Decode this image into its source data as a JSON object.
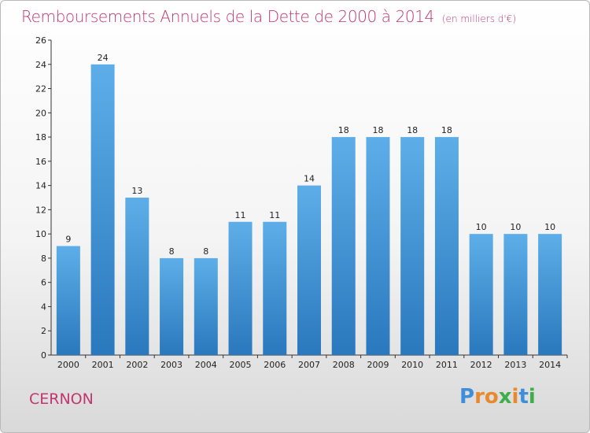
{
  "header": {
    "title": "Remboursements Annuels de la Dette de 2000 à 2014",
    "unit": "(en milliers d'€)"
  },
  "footer": {
    "city": "CERNON",
    "logo_text": "Proxiti"
  },
  "colors": {
    "title": "#c2366f",
    "bar_top": "#5daee8",
    "bar_bottom": "#2a78bd",
    "logo": [
      "#3f8fd8",
      "#e8892c",
      "#e8892c",
      "#3fae49",
      "#e8892c",
      "#3f8fd8",
      "#3fae49"
    ]
  },
  "chart_data": {
    "type": "bar",
    "title": "Remboursements Annuels de la Dette de 2000 à 2014",
    "categories": [
      "2000",
      "2001",
      "2002",
      "2003",
      "2004",
      "2005",
      "2006",
      "2007",
      "2008",
      "2009",
      "2010",
      "2011",
      "2012",
      "2013",
      "2014"
    ],
    "values": [
      9,
      24,
      13,
      8,
      8,
      11,
      11,
      14,
      18,
      18,
      18,
      18,
      10,
      10,
      10
    ],
    "ylim": [
      0,
      26
    ],
    "yticks": [
      0,
      2,
      4,
      6,
      8,
      10,
      12,
      14,
      16,
      18,
      20,
      22,
      24,
      26
    ],
    "grid": false,
    "data_labels": true
  }
}
